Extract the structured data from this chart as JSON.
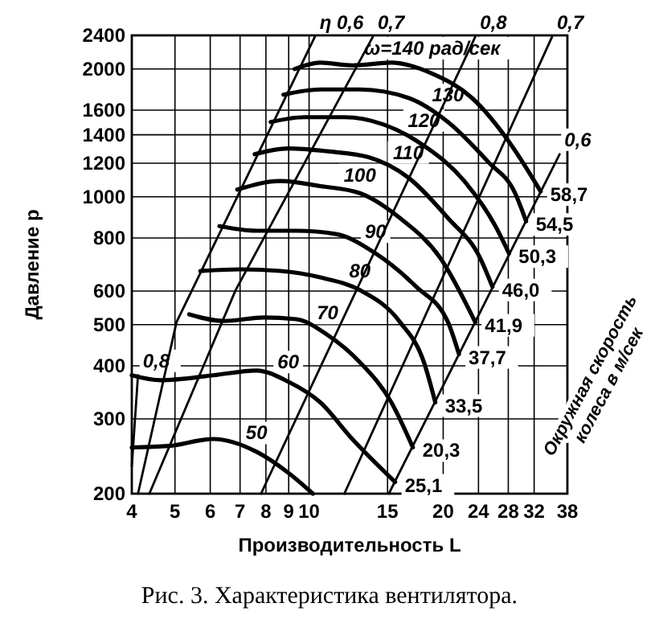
{
  "chart_data": {
    "type": "line",
    "title": "Рис. 3. Характеристика вентилятора.",
    "xlabel": "Производительность L",
    "ylabel": "Давление p",
    "log": "xy",
    "grid": true,
    "legend": false,
    "xlim": [
      4,
      38
    ],
    "ylim": [
      200,
      2400
    ],
    "xticks": [
      4,
      5,
      6,
      7,
      8,
      9,
      10,
      15,
      20,
      24,
      28,
      32,
      38
    ],
    "yticks": [
      200,
      300,
      400,
      500,
      600,
      800,
      1000,
      1200,
      1400,
      1600,
      2000,
      2400
    ],
    "series": [
      {
        "name": "50",
        "color": "#000000",
        "x": [
          4,
          4.84,
          6.09,
          7.62,
          8.98,
          10.2
        ],
        "values": [
          257,
          259,
          269,
          251,
          224,
          200
        ]
      },
      {
        "name": "60",
        "color": "#000000",
        "x": [
          4,
          4.64,
          6.09,
          7.62,
          8.98,
          10.6,
          12.5,
          15.6
        ],
        "values": [
          380,
          370,
          380,
          390,
          367,
          328,
          269,
          213
        ]
      },
      {
        "name": "70",
        "color": "#000000",
        "x": [
          5.38,
          6.45,
          7.93,
          9.36,
          11.0,
          13.0,
          15.3,
          17.1
        ],
        "values": [
          529,
          510,
          520,
          515,
          473,
          408,
          328,
          257
        ]
      },
      {
        "name": "80",
        "color": "#000000",
        "x": [
          5.7,
          7.0,
          8.62,
          10.6,
          13.0,
          16.0,
          18.1,
          19.2
        ],
        "values": [
          669,
          675,
          669,
          646,
          603,
          507,
          408,
          328
        ]
      },
      {
        "name": "90",
        "color": "#000000",
        "x": [
          6.29,
          7.62,
          9.36,
          11.5,
          14.1,
          17.4,
          20.5,
          21.7
        ],
        "values": [
          853,
          832,
          832,
          817,
          736,
          614,
          507,
          426
        ]
      },
      {
        "name": "100",
        "color": "#000000",
        "x": [
          6.9,
          8.62,
          10.6,
          13.0,
          16.0,
          19.7,
          23.6
        ],
        "values": [
          1040,
          1090,
          1060,
          1020,
          891,
          718,
          507
        ]
      },
      {
        "name": "110",
        "color": "#000000",
        "x": [
          7.55,
          8.98,
          11.0,
          13.6,
          16.7,
          20.5,
          24.2,
          25.8
        ],
        "values": [
          1260,
          1300,
          1280,
          1240,
          1110,
          891,
          718,
          614
        ]
      },
      {
        "name": "120",
        "color": "#000000",
        "x": [
          8.2,
          9.75,
          12.0,
          14.7,
          18.1,
          22.3,
          26.2,
          28.1
        ],
        "values": [
          1500,
          1540,
          1540,
          1480,
          1320,
          1090,
          853,
          736
        ]
      },
      {
        "name": "130",
        "color": "#000000",
        "x": [
          8.76,
          10.6,
          13.0,
          16.7,
          20.5,
          25.2,
          29.0,
          30.7
        ],
        "values": [
          1740,
          1790,
          1790,
          1710,
          1500,
          1210,
          1020,
          876
        ]
      },
      {
        "name": "ω=140 рад/сек",
        "color": "#000000",
        "x": [
          9.28,
          10.6,
          12.5,
          15.3,
          18.9,
          23.2,
          28.5,
          33.1
        ],
        "values": [
          2000,
          2070,
          2040,
          2070,
          1950,
          1710,
          1320,
          1030
        ]
      },
      {
        "name": "0,8",
        "color": "#000000",
        "x": [
          4,
          4.13
        ],
        "values": [
          232,
          380
        ]
      },
      {
        "name": "η 0,6",
        "color": "#000000",
        "x": [
          4.13,
          5.04,
          10.3
        ],
        "values": [
          200,
          507,
          2380
        ]
      },
      {
        "name": "0,7",
        "color": "#000000",
        "x": [
          4.38,
          6.84,
          13.9
        ],
        "values": [
          200,
          603,
          2380
        ]
      },
      {
        "name": "0,8",
        "color": "#000000",
        "x": [
          7.8,
          23.6
        ],
        "values": [
          200,
          2380
        ]
      },
      {
        "name": "0,7",
        "color": "#000000",
        "x": [
          12.0,
          35.1
        ],
        "values": [
          200,
          2380
        ]
      },
      {
        "name": "0,6",
        "color": "#000000",
        "x": [
          15.1,
          36.5
        ],
        "values": [
          200,
          1260
        ]
      }
    ],
    "annotations": [
      {
        "text": "25,1",
        "x": 15.6,
        "y": 213
      },
      {
        "text": "20,3",
        "x": 17.1,
        "y": 257
      },
      {
        "text": "33,5",
        "x": 19.2,
        "y": 328
      },
      {
        "text": "37,7",
        "x": 21.7,
        "y": 426
      },
      {
        "text": "41,9",
        "x": 23.6,
        "y": 507
      },
      {
        "text": "46,0",
        "x": 25.8,
        "y": 614
      },
      {
        "text": "50,3",
        "x": 28.1,
        "y": 736
      },
      {
        "text": "54,5",
        "x": 30.7,
        "y": 876
      },
      {
        "text": "58,7",
        "x": 33.1,
        "y": 1030
      },
      "Окружная скорость колеса в м/сек"
    ]
  }
}
